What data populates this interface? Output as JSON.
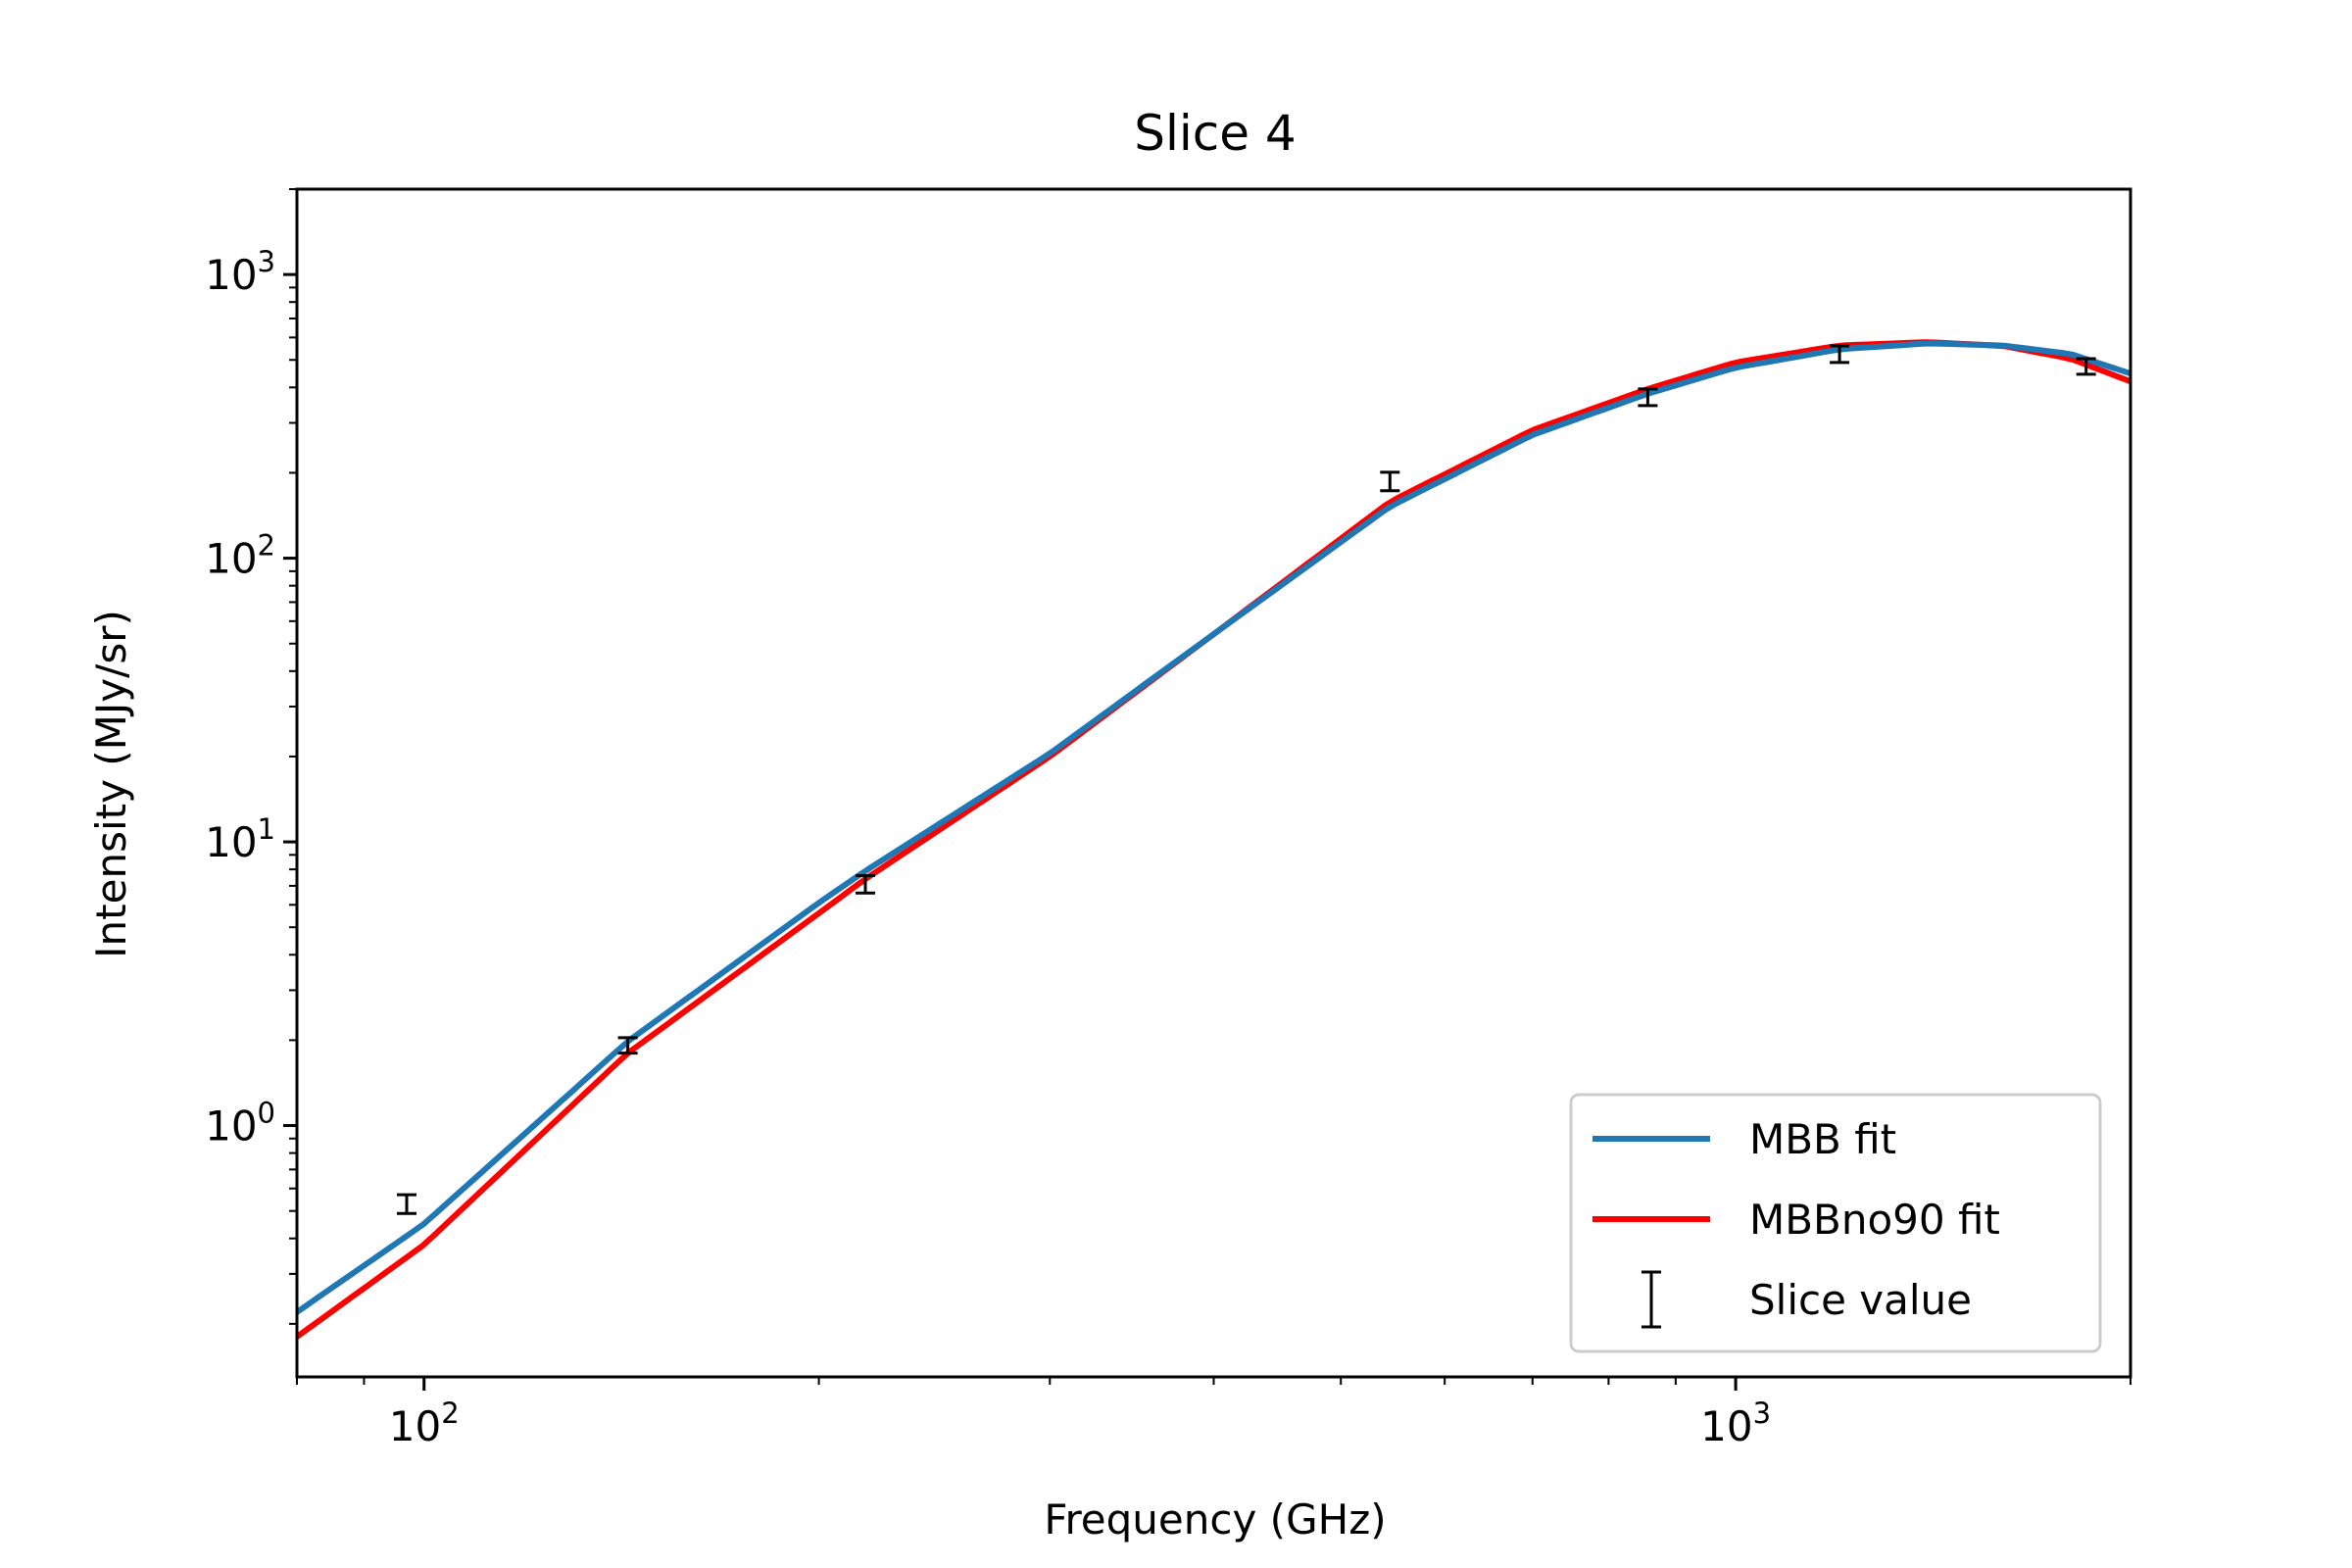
{
  "chart_data": {
    "type": "line",
    "title": "Slice 4",
    "xlabel": "Frequency (GHz)",
    "ylabel": "Intensity (MJy/sr)",
    "xscale": "log",
    "yscale": "log",
    "xlim": [
      80,
      2000
    ],
    "ylim": [
      0.13,
      2000
    ],
    "grid": false,
    "legend_position": "bottom-right",
    "x_tick_labels": [
      {
        "value": 100,
        "base": "10",
        "exp": "2"
      },
      {
        "value": 1000,
        "base": "10",
        "exp": "3"
      }
    ],
    "y_tick_labels": [
      {
        "value": 1,
        "base": "10",
        "exp": "0"
      },
      {
        "value": 10,
        "base": "10",
        "exp": "1"
      },
      {
        "value": 100,
        "base": "10",
        "exp": "2"
      },
      {
        "value": 1000,
        "base": "10",
        "exp": "3"
      }
    ],
    "series": [
      {
        "name": "MBB fit",
        "kind": "line",
        "color": "#1f77b4",
        "x": [
          80,
          100,
          143,
          200,
          217,
          300,
          400,
          545,
          700,
          857,
          1000,
          1200,
          1400,
          1600,
          1800,
          2000
        ],
        "y": [
          0.22,
          0.45,
          1.98,
          6.1,
          7.9,
          20.5,
          54,
          152,
          272,
          380,
          470,
          545,
          572,
          562,
          525,
          448
        ]
      },
      {
        "name": "MBBno90 fit",
        "kind": "line",
        "color": "#ff0000",
        "x": [
          80,
          100,
          143,
          200,
          217,
          300,
          400,
          545,
          700,
          857,
          1000,
          1200,
          1400,
          1600,
          1800,
          2000
        ],
        "y": [
          0.18,
          0.38,
          1.8,
          5.6,
          7.4,
          20.0,
          54,
          158,
          283,
          395,
          490,
          562,
          578,
          560,
          505,
          420
        ]
      },
      {
        "name": "Slice value",
        "kind": "errorbar",
        "color": "#000000",
        "x": [
          97,
          143,
          217,
          545,
          857,
          1200,
          1850
        ],
        "y": [
          0.53,
          1.92,
          7.1,
          187,
          370,
          525,
          475
        ],
        "yerr": [
          0.04,
          0.12,
          0.5,
          14,
          25,
          35,
          30
        ]
      }
    ]
  }
}
